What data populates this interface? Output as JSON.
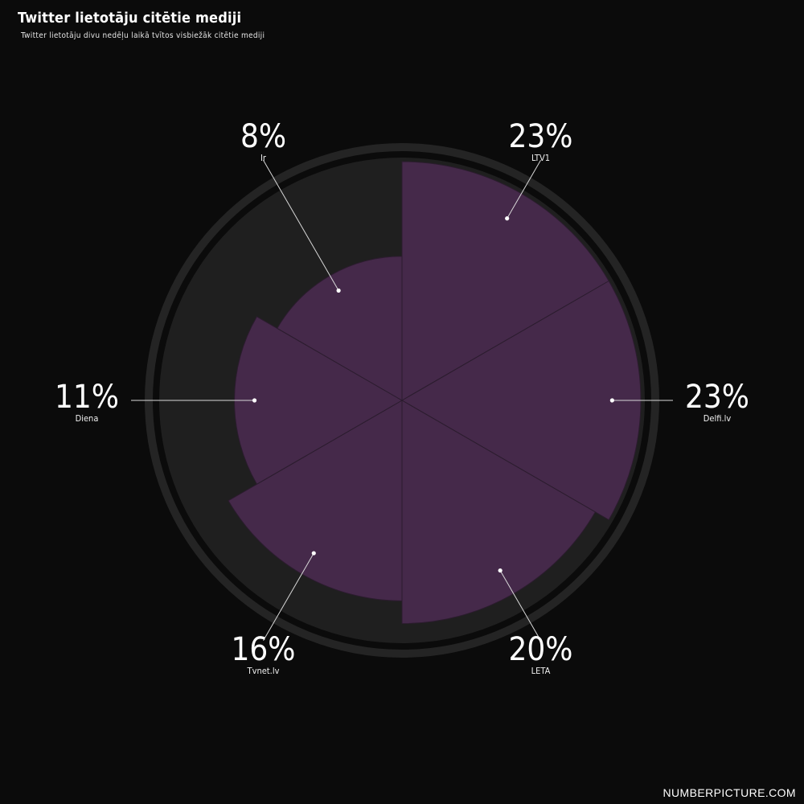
{
  "header": {
    "title": "Twitter lietotāju citētie mediji",
    "subtitle": "Twitter lietotāju divu nedēļu laikā tvītos visbiežāk citētie mediji"
  },
  "footer": {
    "brand": "NUMBERPICTURE.COM"
  },
  "colors": {
    "background": "#0b0b0b",
    "slice": "#45294a",
    "track": "#1f1f1f",
    "ring": "#242424",
    "text": "#ffffff"
  },
  "chart_data": {
    "type": "pie",
    "variant": "polar-area",
    "title": "Twitter lietotāju citētie mediji",
    "subtitle": "Twitter lietotāju divu nedēļu laikā tvītos visbiežāk citētie mediji",
    "legend": "none",
    "slices": [
      {
        "label": "LTV1",
        "value": 23,
        "display": "23%"
      },
      {
        "label": "Delfi.lv",
        "value": 23,
        "display": "23%"
      },
      {
        "label": "LETA",
        "value": 20,
        "display": "20%"
      },
      {
        "label": "Tvnet.lv",
        "value": 16,
        "display": "16%"
      },
      {
        "label": "Diena",
        "value": 11,
        "display": "11%"
      },
      {
        "label": "Ir",
        "value": 8,
        "display": "8%"
      }
    ]
  }
}
